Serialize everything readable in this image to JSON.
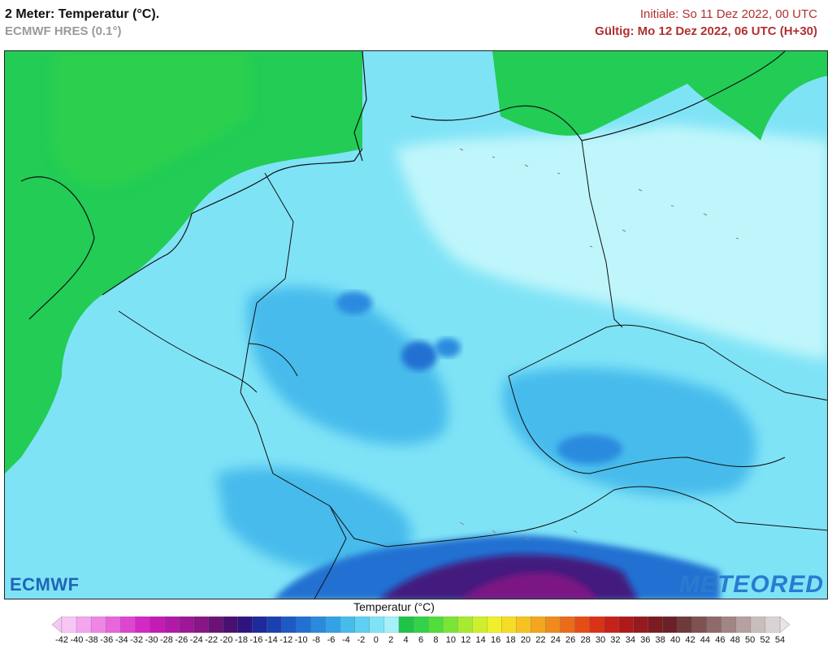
{
  "header": {
    "title": "2 Meter: Temperatur (°C).",
    "model": "ECMWF HRES (0.1°)",
    "initial": "Initiale: So 11 Dez 2022, 00 UTC",
    "valid": "Gültig: Mo 12 Dez 2022, 06 UTC (H+30)"
  },
  "logos": {
    "left": "ECMWF",
    "right": "METEORED"
  },
  "legend": {
    "title": "Temperatur (°C)",
    "ticks": [
      "-42",
      "-40",
      "-38",
      "-36",
      "-34",
      "-32",
      "-30",
      "-28",
      "-26",
      "-24",
      "-22",
      "-20",
      "-18",
      "-16",
      "-14",
      "-12",
      "-10",
      "-8",
      "-6",
      "-4",
      "-2",
      "0",
      "2",
      "4",
      "6",
      "8",
      "10",
      "12",
      "14",
      "16",
      "18",
      "20",
      "22",
      "24",
      "26",
      "28",
      "30",
      "32",
      "34",
      "36",
      "38",
      "40",
      "42",
      "44",
      "46",
      "48",
      "50",
      "52",
      "54"
    ],
    "colors": [
      "#f7c6f4",
      "#f3a6ee",
      "#ee86e6",
      "#e766dc",
      "#de46d1",
      "#d329c6",
      "#c41bb6",
      "#b219a8",
      "#9d1796",
      "#8a1585",
      "#6c1277",
      "#4a1070",
      "#2d1580",
      "#1f2a9a",
      "#1c40b0",
      "#1e5ac4",
      "#2171d2",
      "#2a8ade",
      "#33a2e6",
      "#46bbec",
      "#5fcff2",
      "#7fe3f6",
      "#a6f0f8",
      "#1fc34a",
      "#33d24a",
      "#4fde3c",
      "#7ae538",
      "#a6ea32",
      "#cdef2e",
      "#eff02a",
      "#f6dc26",
      "#f6c222",
      "#f3a61f",
      "#ef8a1c",
      "#ea6c19",
      "#e44d17",
      "#d83217",
      "#c6221a",
      "#ae1a1c",
      "#951a1f",
      "#7c1b22",
      "#6a2228",
      "#6f3a3a",
      "#7e5252",
      "#8f6a6a",
      "#a38585",
      "#b6a0a0",
      "#c9bdbd",
      "#d9d4d4"
    ]
  },
  "map": {
    "sea_warm_color": "#22cc55",
    "land_base_color": "#7fe3f6",
    "cold_color": "#2a8ade",
    "very_cold_color": "#6a2fb0",
    "pale_color": "#bff6fb"
  }
}
